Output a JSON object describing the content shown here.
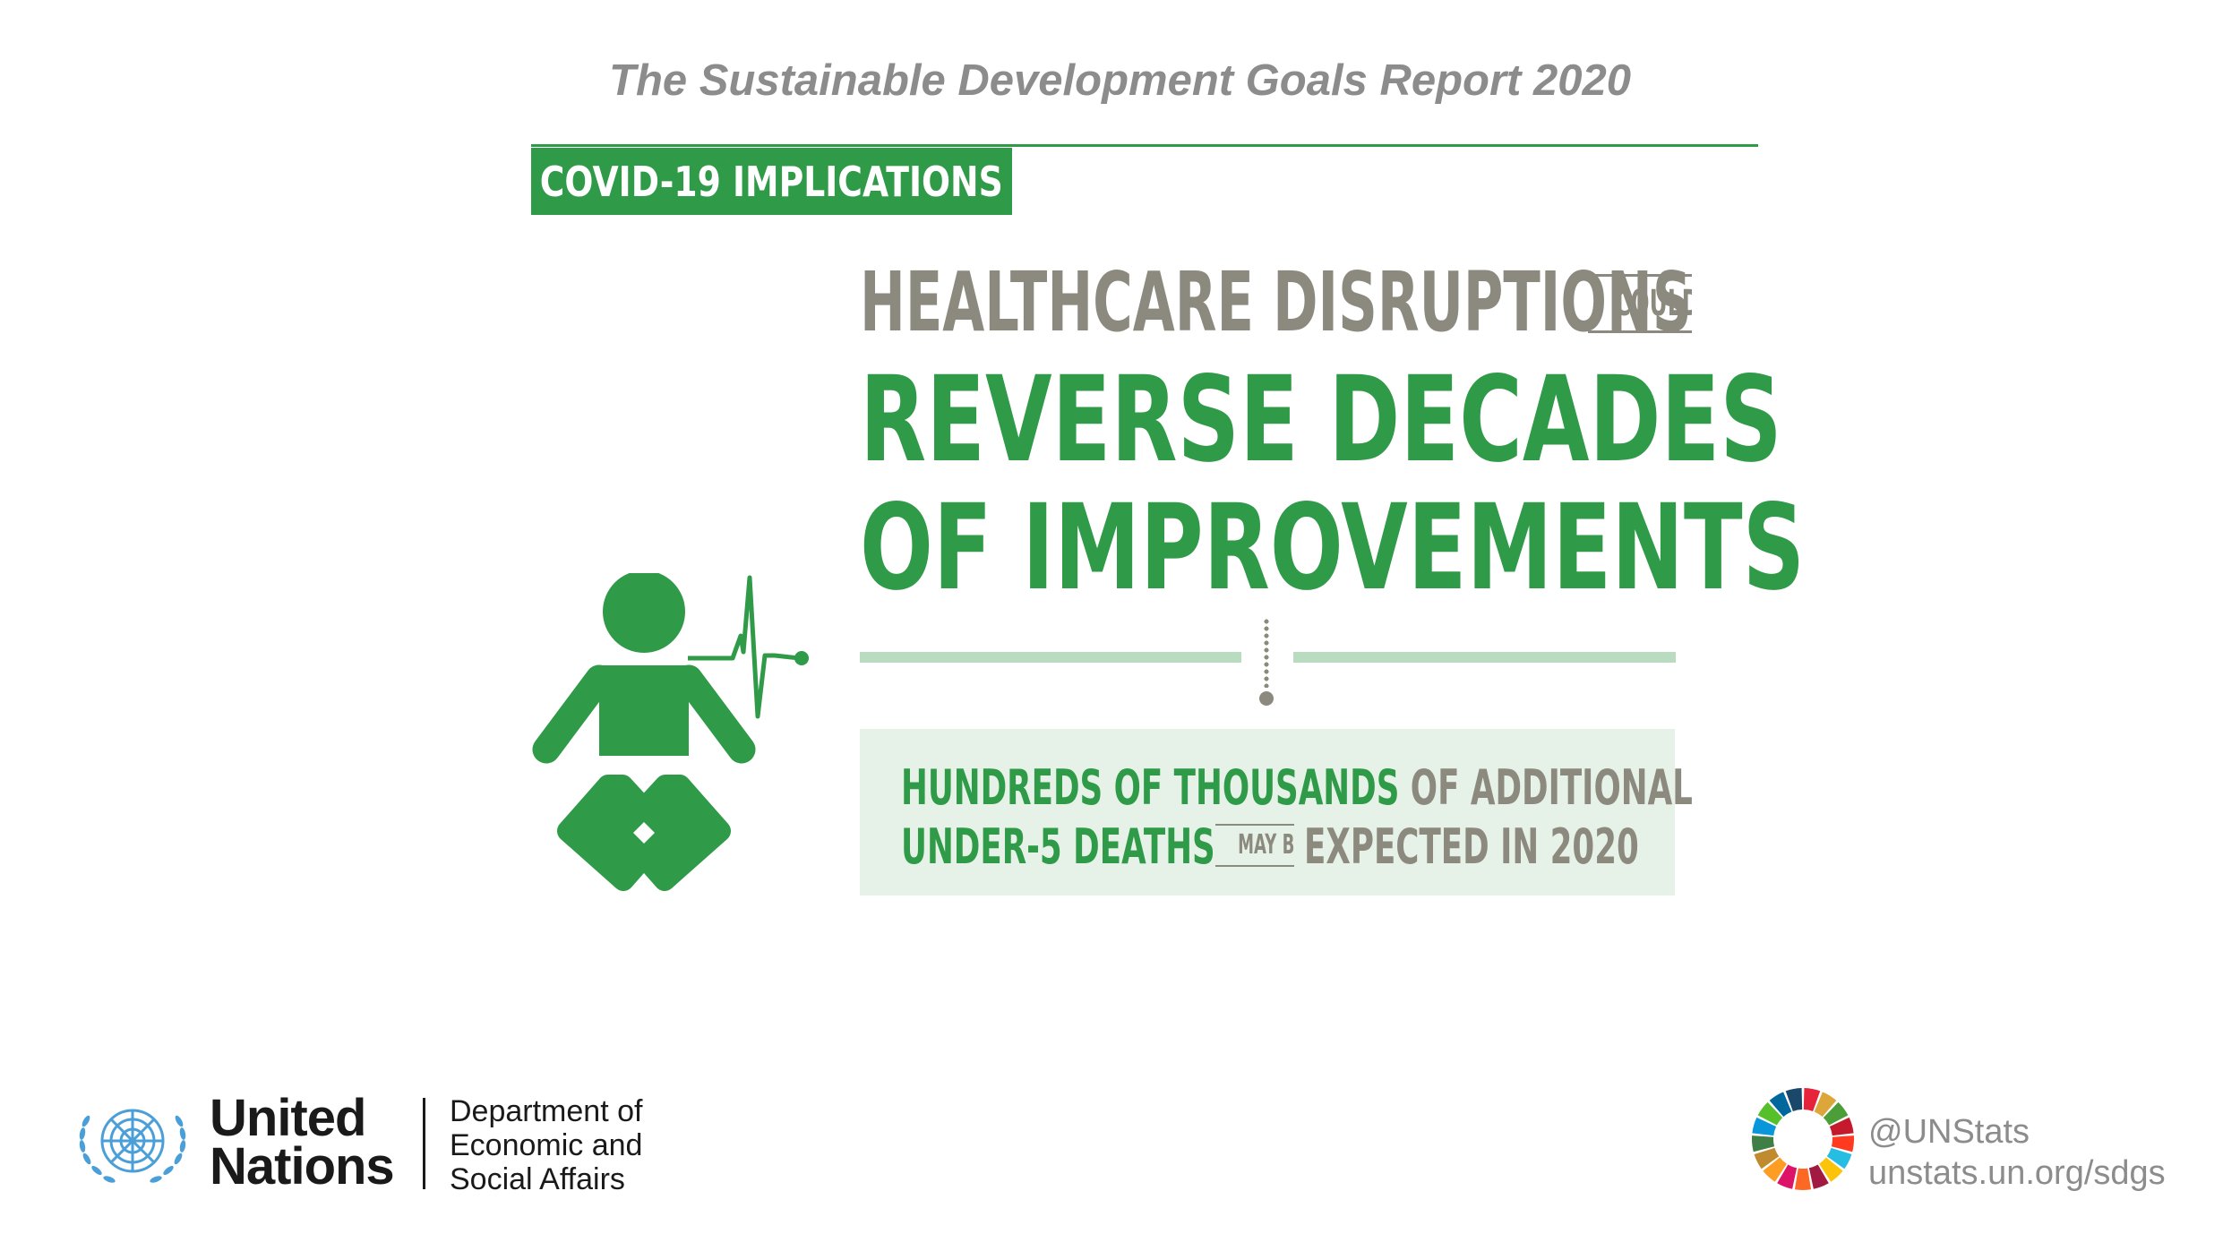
{
  "report_title": "The Sustainable Development Goals Report 2020",
  "tag": "COVID-19 IMPLICATIONS",
  "headline": {
    "line1": "HEALTHCARE DISRUPTIONS",
    "could": "COULD",
    "line2": "REVERSE DECADES",
    "line3": "OF IMPROVEMENTS"
  },
  "info": {
    "row1_green": "HUNDREDS OF THOUSANDS",
    "row1_grey": "OF ADDITIONAL",
    "row2_green": "UNDER-5 DEATHS",
    "row2_small": "MAY BE",
    "row2_grey": "EXPECTED IN 2020"
  },
  "footer": {
    "un_line1": "United",
    "un_line2": "Nations",
    "desa_line1": "Department of",
    "desa_line2": "Economic and",
    "desa_line3": "Social Affairs",
    "handle": "@UNStats",
    "url": "unstats.un.org/sdgs"
  },
  "colors": {
    "green": "#2f9a47",
    "light_green": "#b9dcc1",
    "pale_green_box": "#e6f2e8",
    "grey": "#8c8a7e",
    "un_blue": "#4a9fd8"
  },
  "icons": [
    "baby-icon",
    "heartbeat-line-icon",
    "un-emblem-icon",
    "sdg-wheel-icon"
  ]
}
